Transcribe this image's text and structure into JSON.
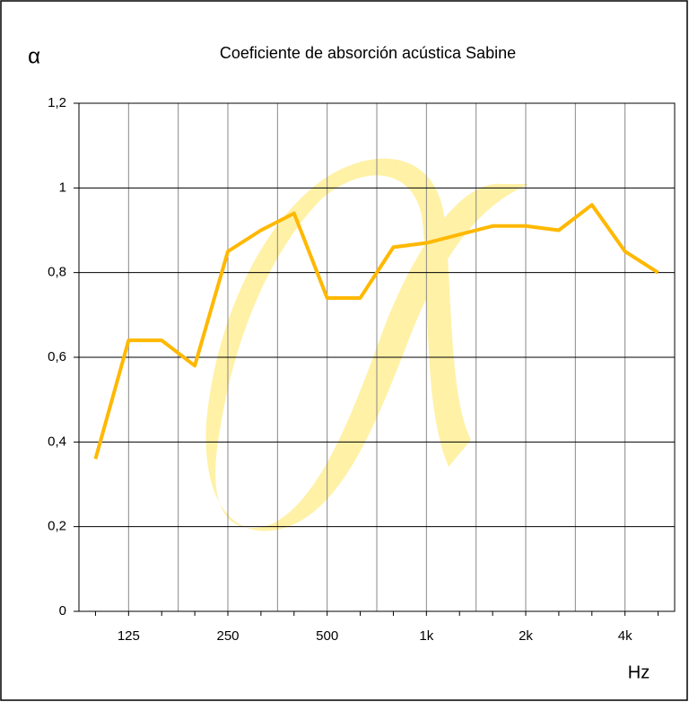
{
  "chart_data": {
    "type": "line",
    "title": "Coeficiente de absorción acústica Sabine",
    "y_label": "α",
    "x_label": "Hz",
    "categories": [
      null,
      "125",
      null,
      null,
      "250",
      null,
      null,
      "500",
      null,
      null,
      "1k",
      null,
      null,
      "2k",
      null,
      null,
      "4k",
      null
    ],
    "series": [
      {
        "name": "α",
        "color": "#ffb800",
        "values": [
          0.36,
          0.64,
          0.64,
          0.58,
          0.85,
          0.9,
          0.94,
          0.74,
          0.74,
          0.86,
          0.87,
          0.89,
          0.91,
          0.91,
          0.9,
          0.96,
          0.85,
          0.8
        ]
      }
    ],
    "ylim": [
      0,
      1.2
    ],
    "yticks": [
      0,
      {
        "value": 0.2,
        "label": "0,2"
      },
      {
        "value": 0.4,
        "label": "0,4"
      },
      {
        "value": 0.6,
        "label": "0,6"
      },
      {
        "value": 0.8,
        "label": "0,8"
      },
      1,
      {
        "value": 1.2,
        "label": "1,2"
      }
    ],
    "grid": true
  }
}
